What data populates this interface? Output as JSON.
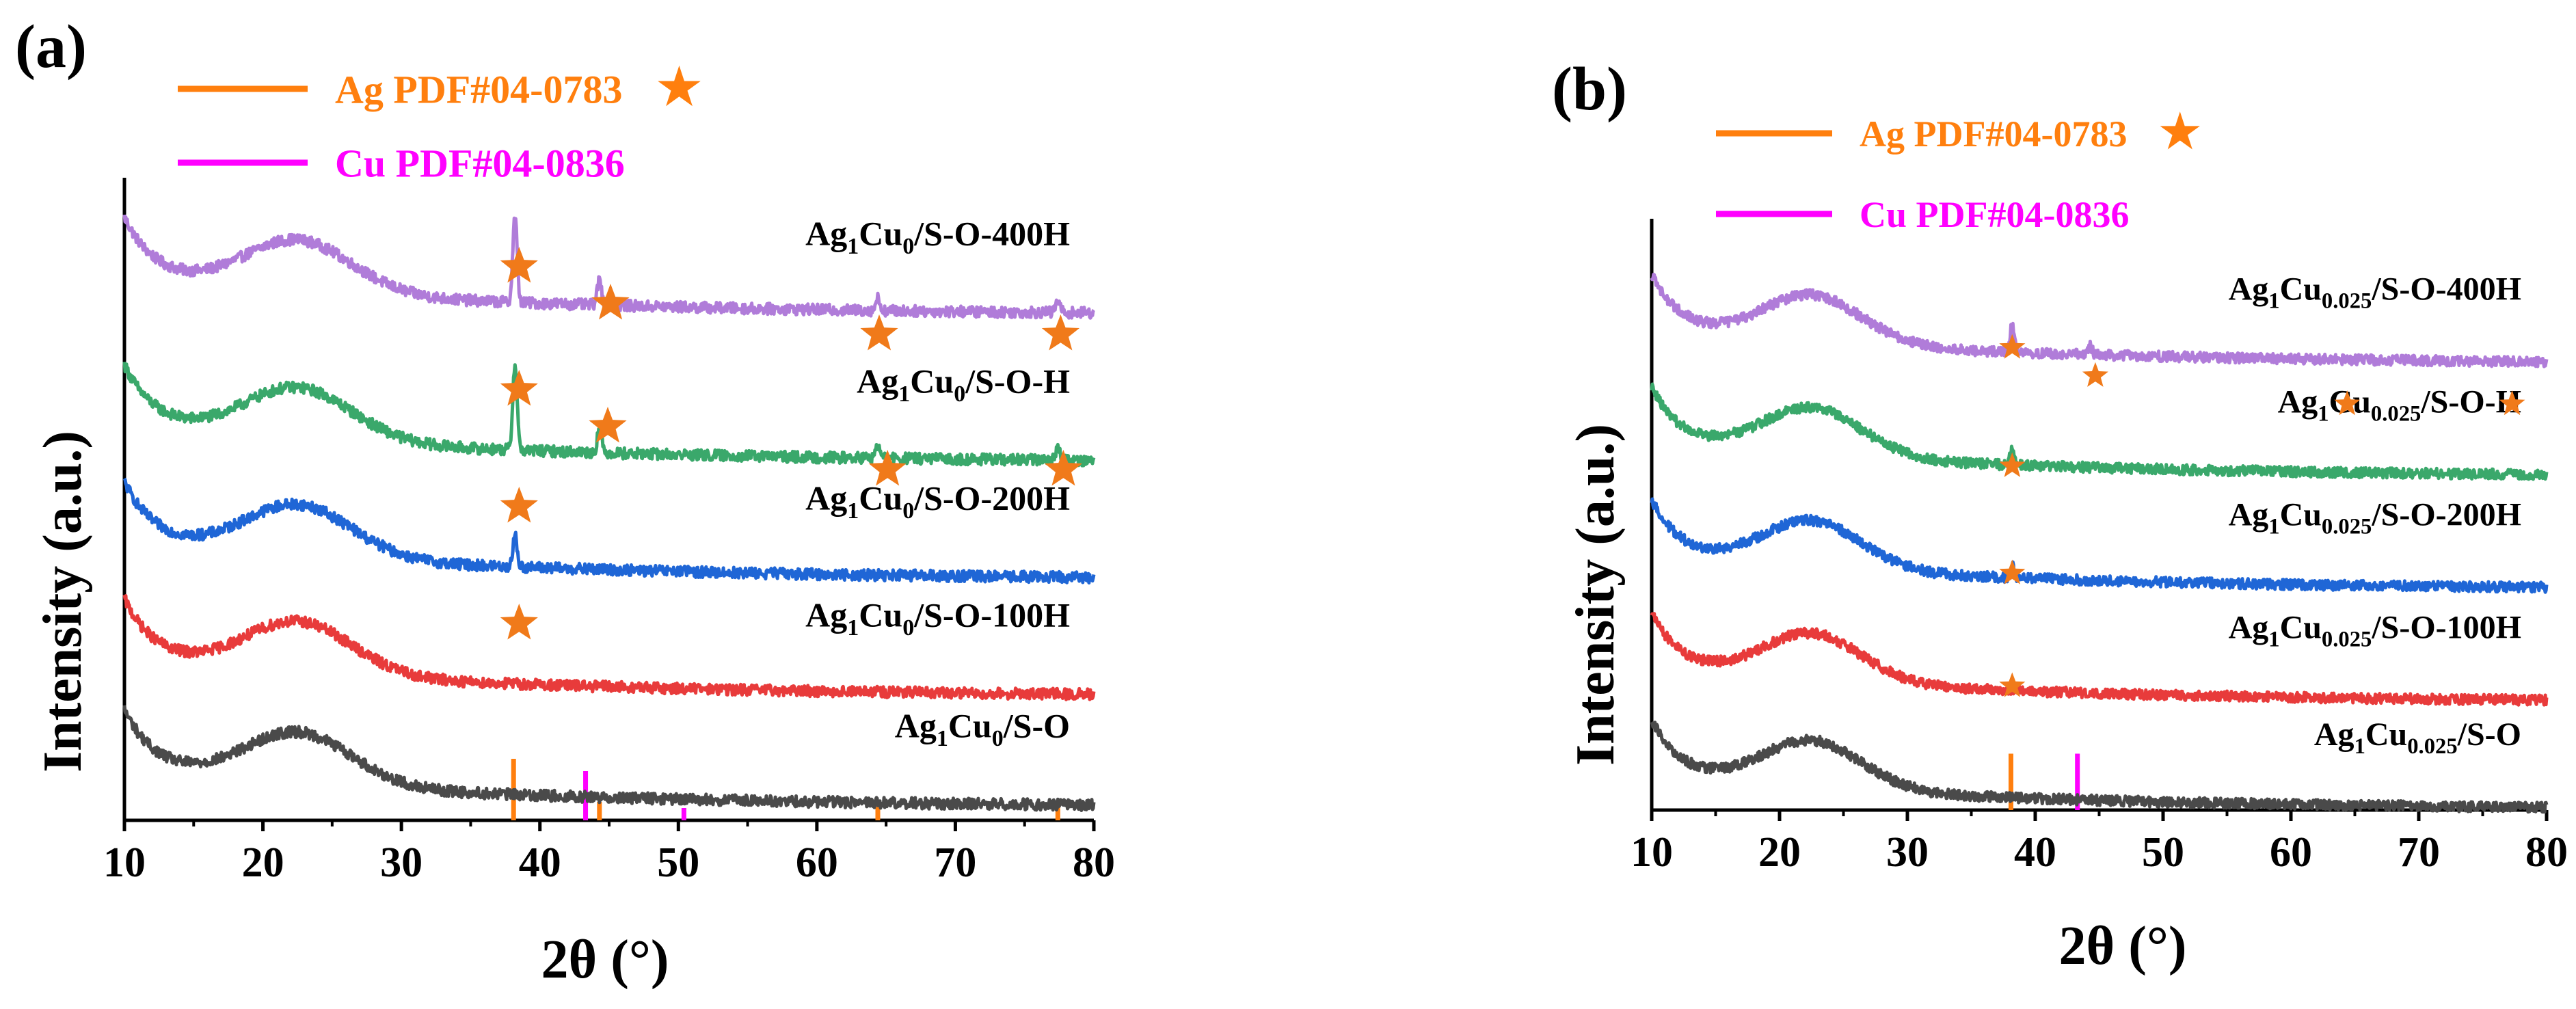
{
  "chart_data": [
    {
      "type": "line",
      "panel_label": "(a)",
      "xlabel": "2θ (°)",
      "ylabel": "Intensity (a.u.)",
      "xlim": [
        10,
        80
      ],
      "xticks": [
        "10",
        "20",
        "30",
        "40",
        "50",
        "60",
        "70",
        "80"
      ],
      "legend": [
        {
          "text": "Ag PDF#04-0783",
          "color": "#ff7f0e",
          "marker": "★"
        },
        {
          "text": "Cu PDF#04-0836",
          "color": "#ff00ff",
          "marker": ""
        }
      ],
      "series": [
        {
          "name": "Ag1Cu0/S-O-400H",
          "label_main": "Ag",
          "sub1": "1",
          "label_mid": "Cu",
          "sub2": "0",
          "label_tail": "/S-O-400H",
          "color": "#b07cd9",
          "offset": 0.88,
          "peaks": [
            [
              38.2,
              0.14
            ],
            [
              44.3,
              0.04
            ],
            [
              64.4,
              0.02
            ],
            [
              77.4,
              0.02
            ]
          ]
        },
        {
          "name": "Ag1Cu0/S-O-H",
          "label_main": "Ag",
          "sub1": "1",
          "label_mid": "Cu",
          "sub2": "0",
          "label_tail": "/S-O-H",
          "color": "#3aa86b",
          "offset": 0.64,
          "peaks": [
            [
              38.2,
              0.14
            ],
            [
              44.3,
              0.04
            ],
            [
              64.4,
              0.02
            ],
            [
              77.4,
              0.02
            ]
          ]
        },
        {
          "name": "Ag1Cu0/S-O-200H",
          "label_main": "Ag",
          "sub1": "1",
          "label_mid": "Cu",
          "sub2": "0",
          "label_tail": "/S-O-200H",
          "color": "#1f66d6",
          "offset": 0.45,
          "peaks": [
            [
              38.2,
              0.05
            ]
          ]
        },
        {
          "name": "Ag1Cu0/S-O-100H",
          "label_main": "Ag",
          "sub1": "1",
          "label_mid": "Cu",
          "sub2": "0",
          "label_tail": "/S-O-100H",
          "color": "#e83b3b",
          "offset": 0.26,
          "peaks": []
        },
        {
          "name": "Ag1Cu0/S-O",
          "label_main": "Ag",
          "sub1": "1",
          "label_mid": "Cu",
          "sub2": "0",
          "label_tail": "/S-O",
          "color": "#4a4a4a",
          "offset": 0.08,
          "peaks": []
        }
      ],
      "reference_lines": [
        {
          "x": 38.1,
          "color": "#ff7f0e",
          "height": 0.1
        },
        {
          "x": 44.3,
          "color": "#ff7f0e",
          "height": 0.03
        },
        {
          "x": 64.4,
          "color": "#ff7f0e",
          "height": 0.03
        },
        {
          "x": 77.4,
          "color": "#ff7f0e",
          "height": 0.03
        },
        {
          "x": 43.3,
          "color": "#ff00ff",
          "height": 0.08
        },
        {
          "x": 50.4,
          "color": "#ff00ff",
          "height": 0.02
        }
      ],
      "star_markers": [
        {
          "x": 38.5,
          "y": 0.9
        },
        {
          "x": 45.1,
          "y": 0.84
        },
        {
          "x": 64.5,
          "y": 0.79
        },
        {
          "x": 77.6,
          "y": 0.79
        },
        {
          "x": 38.5,
          "y": 0.7
        },
        {
          "x": 44.9,
          "y": 0.64
        },
        {
          "x": 65.1,
          "y": 0.57
        },
        {
          "x": 77.8,
          "y": 0.57
        },
        {
          "x": 38.5,
          "y": 0.51
        },
        {
          "x": 38.5,
          "y": 0.32
        }
      ]
    },
    {
      "type": "line",
      "panel_label": "(b)",
      "xlabel": "2θ (°)",
      "ylabel": "Intensity (a.u.)",
      "xlim": [
        10,
        80
      ],
      "xticks": [
        "10",
        "20",
        "30",
        "40",
        "50",
        "60",
        "70",
        "80"
      ],
      "legend": [
        {
          "text": "Ag PDF#04-0783",
          "color": "#ff7f0e",
          "marker": "★"
        },
        {
          "text": "Cu PDF#04-0836",
          "color": "#ff00ff",
          "marker": ""
        }
      ],
      "series": [
        {
          "name": "Ag1Cu0.025/S-O-400H",
          "label_main": "Ag",
          "sub1": "1",
          "label_mid": "Cu",
          "sub2": "0.025",
          "label_tail": "/S-O-400H",
          "color": "#b07cd9",
          "offset": 0.85,
          "peaks": [
            [
              38.2,
              0.05
            ],
            [
              44.3,
              0.015
            ]
          ]
        },
        {
          "name": "Ag1Cu0.025/S-O-H",
          "label_main": "Ag",
          "sub1": "1",
          "label_mid": "Cu",
          "sub2": "0.025",
          "label_tail": "/S-O-H",
          "color": "#3aa86b",
          "offset": 0.65,
          "peaks": [
            [
              38.2,
              0.03
            ]
          ]
        },
        {
          "name": "Ag1Cu0.025/S-O-200H",
          "label_main": "Ag",
          "sub1": "1",
          "label_mid": "Cu",
          "sub2": "0.025",
          "label_tail": "/S-O-200H",
          "color": "#1f66d6",
          "offset": 0.45,
          "peaks": [
            [
              38.2,
              0.02
            ]
          ]
        },
        {
          "name": "Ag1Cu0.025/S-O-100H",
          "label_main": "Ag",
          "sub1": "1",
          "label_mid": "Cu",
          "sub2": "0.025",
          "label_tail": "/S-O-100H",
          "color": "#e83b3b",
          "offset": 0.25,
          "peaks": []
        },
        {
          "name": "Ag1Cu0.025/S-O",
          "label_main": "Ag",
          "sub1": "1",
          "label_mid": "Cu",
          "sub2": "0.025",
          "label_tail": "/S-O",
          "color": "#4a4a4a",
          "offset": 0.06,
          "peaks": []
        }
      ],
      "reference_lines": [
        {
          "x": 38.1,
          "color": "#ff7f0e",
          "height": 0.1
        },
        {
          "x": 64.4,
          "color": "#ff7f0e",
          "height": 0.01
        },
        {
          "x": 77.4,
          "color": "#ff7f0e",
          "height": 0.01
        },
        {
          "x": 43.3,
          "color": "#ff00ff",
          "height": 0.1
        }
      ],
      "star_markers": [
        {
          "x": 38.2,
          "y": 0.82
        },
        {
          "x": 44.7,
          "y": 0.77
        },
        {
          "x": 64.4,
          "y": 0.72
        },
        {
          "x": 77.3,
          "y": 0.72
        },
        {
          "x": 38.2,
          "y": 0.61
        },
        {
          "x": 38.2,
          "y": 0.42
        },
        {
          "x": 38.2,
          "y": 0.22
        }
      ]
    }
  ]
}
